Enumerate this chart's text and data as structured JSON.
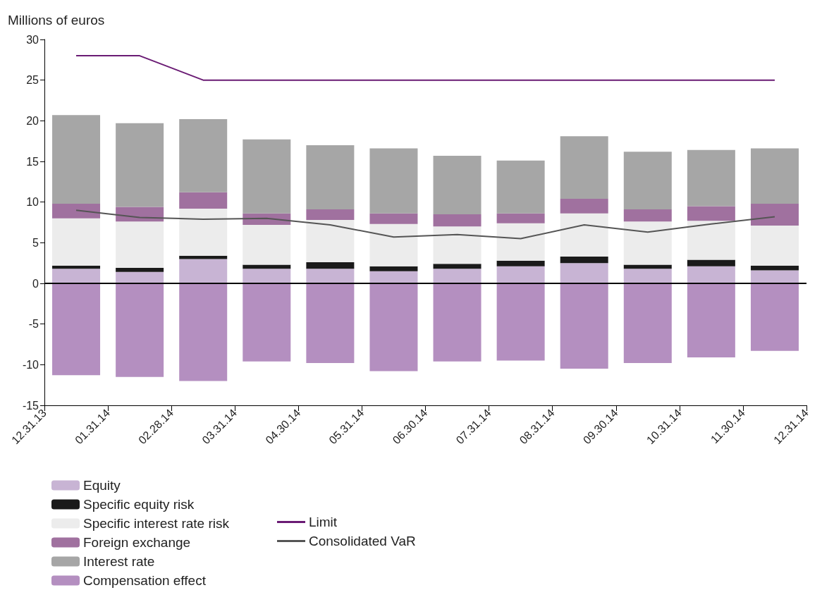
{
  "chart_data": {
    "type": "bar",
    "ylabel": "Millions of euros",
    "stacked": true,
    "categories": [
      "12.31.13",
      null,
      "01.31.14",
      null,
      "02.28.14",
      null,
      "03.31.14",
      null,
      "04.30.14",
      null,
      "05.31.14",
      null,
      "06.30.14",
      null,
      "07.31.14",
      null,
      "08.31.14",
      null,
      "09.30.14",
      null,
      "10.31.14",
      null,
      "11.30.14",
      null,
      "12.31.14"
    ],
    "ylim": [
      -15,
      30
    ],
    "yticks": [
      -15,
      -10,
      -5,
      0,
      5,
      10,
      15,
      20,
      25,
      30
    ],
    "grid": false,
    "legend": "bottom left",
    "ref_lines": [
      {
        "axis": "y",
        "value": 0,
        "color": "#000000"
      }
    ],
    "series": [
      {
        "name": "Equity",
        "color": "#c8b4d4",
        "values": [
          null,
          1.8,
          null,
          1.4,
          null,
          3.0,
          null,
          1.8,
          null,
          1.8,
          null,
          1.5,
          null,
          1.8,
          null,
          2.1,
          null,
          2.5,
          null,
          1.8,
          null,
          2.1,
          null,
          1.6,
          null
        ]
      },
      {
        "name": "Specific equity risk",
        "color": "#1a1a1a",
        "values": [
          null,
          0.4,
          null,
          0.5,
          null,
          0.4,
          null,
          0.5,
          null,
          0.8,
          null,
          0.6,
          null,
          0.6,
          null,
          0.7,
          null,
          0.8,
          null,
          0.5,
          null,
          0.8,
          null,
          0.6,
          null
        ]
      },
      {
        "name": "Specific interest rate risk",
        "color": "#ececec",
        "values": [
          null,
          5.8,
          null,
          5.7,
          null,
          5.8,
          null,
          4.9,
          null,
          5.2,
          null,
          5.2,
          null,
          4.6,
          null,
          4.6,
          null,
          5.3,
          null,
          5.3,
          null,
          4.8,
          null,
          4.9,
          null
        ]
      },
      {
        "name": "Foreign exchange",
        "color": "#a0719f",
        "values": [
          null,
          1.8,
          null,
          1.8,
          null,
          2.0,
          null,
          1.4,
          null,
          1.3,
          null,
          1.3,
          null,
          1.5,
          null,
          1.2,
          null,
          1.8,
          null,
          1.5,
          null,
          1.8,
          null,
          2.7,
          null
        ]
      },
      {
        "name": "Interest rate",
        "color": "#a6a6a6",
        "values": [
          null,
          10.9,
          null,
          10.3,
          null,
          9.0,
          null,
          9.1,
          null,
          7.9,
          null,
          8.0,
          null,
          7.2,
          null,
          6.5,
          null,
          7.7,
          null,
          7.1,
          null,
          6.9,
          null,
          6.8,
          null
        ]
      },
      {
        "name": "Compensation effect",
        "color": "#b48fc0",
        "values": [
          null,
          -11.3,
          null,
          -11.5,
          null,
          -12.0,
          null,
          -9.6,
          null,
          -9.8,
          null,
          -10.8,
          null,
          -9.6,
          null,
          -9.5,
          null,
          -10.5,
          null,
          -9.8,
          null,
          -9.1,
          null,
          -8.3,
          null
        ]
      },
      {
        "name": "Limit",
        "type": "line",
        "color": "#6a1b74",
        "marker": "none",
        "values": [
          null,
          28,
          null,
          28,
          null,
          25,
          null,
          25,
          null,
          25,
          null,
          25,
          null,
          25,
          null,
          25,
          null,
          25,
          null,
          25,
          null,
          25,
          null,
          25,
          null
        ]
      },
      {
        "name": "Consolidated VaR",
        "type": "line",
        "color": "#555555",
        "marker": "none",
        "values": [
          null,
          9.0,
          null,
          8.1,
          null,
          7.9,
          null,
          8.0,
          null,
          7.2,
          null,
          5.7,
          null,
          6.0,
          null,
          5.5,
          null,
          7.2,
          null,
          6.3,
          null,
          7.3,
          null,
          8.2,
          null
        ]
      }
    ]
  }
}
